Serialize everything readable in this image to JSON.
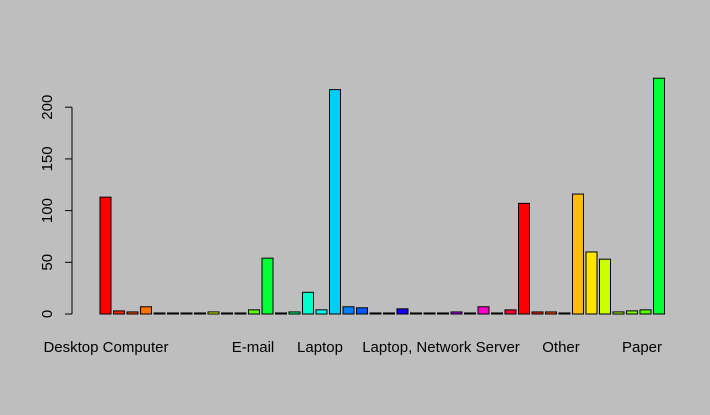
{
  "chart_data": {
    "type": "bar",
    "title": "",
    "xlabel": "",
    "ylabel": "",
    "ylim": [
      0,
      230
    ],
    "yticks": [
      0,
      50,
      100,
      150,
      200
    ],
    "tick_labels": [
      "0",
      "50",
      "100",
      "150",
      "200"
    ],
    "grid": false,
    "category_labels": [
      "Desktop Computer",
      "E-mail",
      "Laptop",
      "Laptop, Network Server",
      "Other",
      "Paper"
    ],
    "values": [
      113,
      3,
      2,
      7,
      1,
      1,
      1,
      1,
      2,
      1,
      1,
      4,
      54,
      1,
      2,
      21,
      4,
      217,
      7,
      6,
      1,
      1,
      5,
      1,
      1,
      1,
      2,
      1,
      7,
      1,
      4,
      107,
      2,
      2,
      1,
      116,
      60,
      53,
      2,
      3,
      4,
      228
    ],
    "colors": [
      "#ff0000",
      "#ff2600",
      "#ff4d00",
      "#ff7300",
      "#ff9900",
      "#ffbf00",
      "#ffe500",
      "#f2ff00",
      "#ccff00",
      "#a6ff00",
      "#80ff00",
      "#59ff00",
      "#00ff33",
      "#00ff59",
      "#00ff80",
      "#00ffcc",
      "#00fff2",
      "#00ccff",
      "#0080ff",
      "#0059ff",
      "#0033ff",
      "#000dff",
      "#1a00ff",
      "#4000ff",
      "#6600ff",
      "#8c00ff",
      "#b300ff",
      "#d900ff",
      "#ff00cc",
      "#ff0080",
      "#ff0033",
      "#ff0000",
      "#ff2600",
      "#ff4d00",
      "#ff9900",
      "#ffbf00",
      "#ffe500",
      "#ccff00",
      "#a6ff00",
      "#80ff00",
      "#59ff00",
      "#00ff33"
    ]
  }
}
